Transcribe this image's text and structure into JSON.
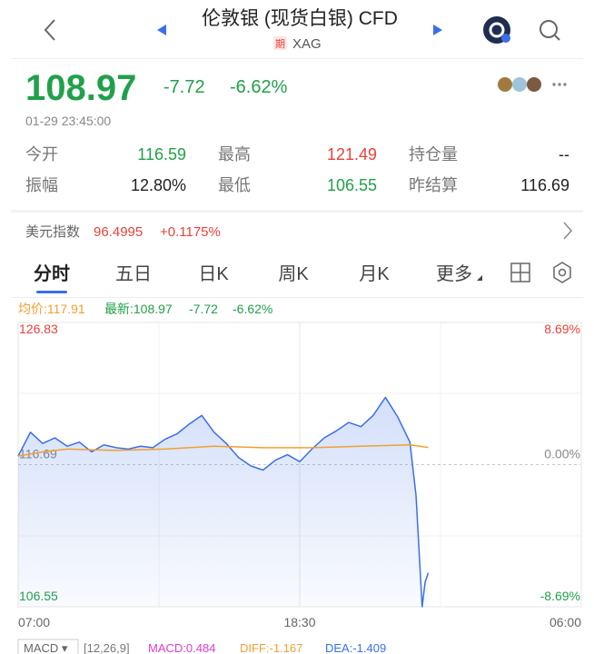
{
  "header": {
    "title": "伦敦银 (现货白银) CFD",
    "tag": "期",
    "symbol": "XAG"
  },
  "quote": {
    "price": "108.97",
    "change": "-7.72",
    "change_pct": "-6.62%",
    "time": "01-29 23:45:00"
  },
  "stats": [
    [
      {
        "label": "今开",
        "value": "116.59"
      },
      {
        "label": "最高",
        "value": "121.49"
      },
      {
        "label": "持仓量",
        "value": "--"
      }
    ],
    [
      {
        "label": "振幅",
        "value": "12.80%"
      },
      {
        "label": "最低",
        "value": "106.55"
      },
      {
        "label": "昨结算",
        "value": "116.69"
      }
    ]
  ],
  "index": {
    "label": "美元指数",
    "value": "96.4995",
    "change": "+0.1175%"
  },
  "tabs": [
    "分时",
    "五日",
    "日K",
    "周K",
    "月K",
    "更多"
  ],
  "chart_data": {
    "type": "line",
    "legend": {
      "avg": "均价:117.91",
      "latest": "最新:108.97",
      "change": "-7.72",
      "change_pct": "-6.62%"
    },
    "series": [
      {
        "color": "#3a6fe8",
        "x": [
          0,
          0.5,
          1,
          1.5,
          2,
          2.5,
          3,
          3.5,
          4,
          4.5,
          5,
          5.5,
          6,
          6.5,
          7,
          7.5,
          8,
          8.5,
          9,
          9.5,
          10,
          10.5,
          11,
          11.5,
          12,
          12.5,
          13,
          13.5,
          14,
          14.5,
          15,
          15.5,
          16,
          16.25,
          16.5,
          16.62,
          16.75
        ],
        "values": [
          117.3,
          119.0,
          118.2,
          118.6,
          118.0,
          118.3,
          117.6,
          118.1,
          117.9,
          117.8,
          118.0,
          117.9,
          118.5,
          118.9,
          119.6,
          120.2,
          119.0,
          118.2,
          117.2,
          116.6,
          116.3,
          117.0,
          117.4,
          116.9,
          117.8,
          118.6,
          119.1,
          119.7,
          119.4,
          120.2,
          121.49,
          120.1,
          118.3,
          114.5,
          106.55,
          108.3,
          108.97
        ]
      },
      {
        "color": "#f0a030",
        "x": [
          0,
          1,
          2,
          4,
          6,
          8,
          10,
          12,
          14,
          16,
          16.75
        ],
        "values": [
          117.3,
          117.6,
          117.8,
          117.7,
          117.8,
          118.0,
          117.9,
          117.9,
          118.0,
          118.1,
          117.91
        ]
      }
    ],
    "xlim": [
      0,
      23
    ],
    "xticks": [
      {
        "value": 0,
        "label": "07:00"
      },
      {
        "value": 11.5,
        "label": "18:30"
      },
      {
        "value": 23,
        "label": "06:00"
      }
    ],
    "ylim": [
      106.55,
      126.83
    ],
    "yticks": [
      106.55,
      116.69,
      126.83
    ],
    "y2lim": [
      -8.69,
      8.69
    ],
    "y2ticks": [
      {
        "value": -8.69,
        "label": "-8.69%"
      },
      {
        "value": 0,
        "label": "0.00%"
      },
      {
        "value": 8.69,
        "label": "8.69%"
      }
    ],
    "grid": true
  },
  "indicator": {
    "name": "MACD ▾",
    "params": "[12,26,9]",
    "macd": "MACD:0.484",
    "diff": "DIFF:-1.167",
    "dea": "DEA:-1.409"
  }
}
